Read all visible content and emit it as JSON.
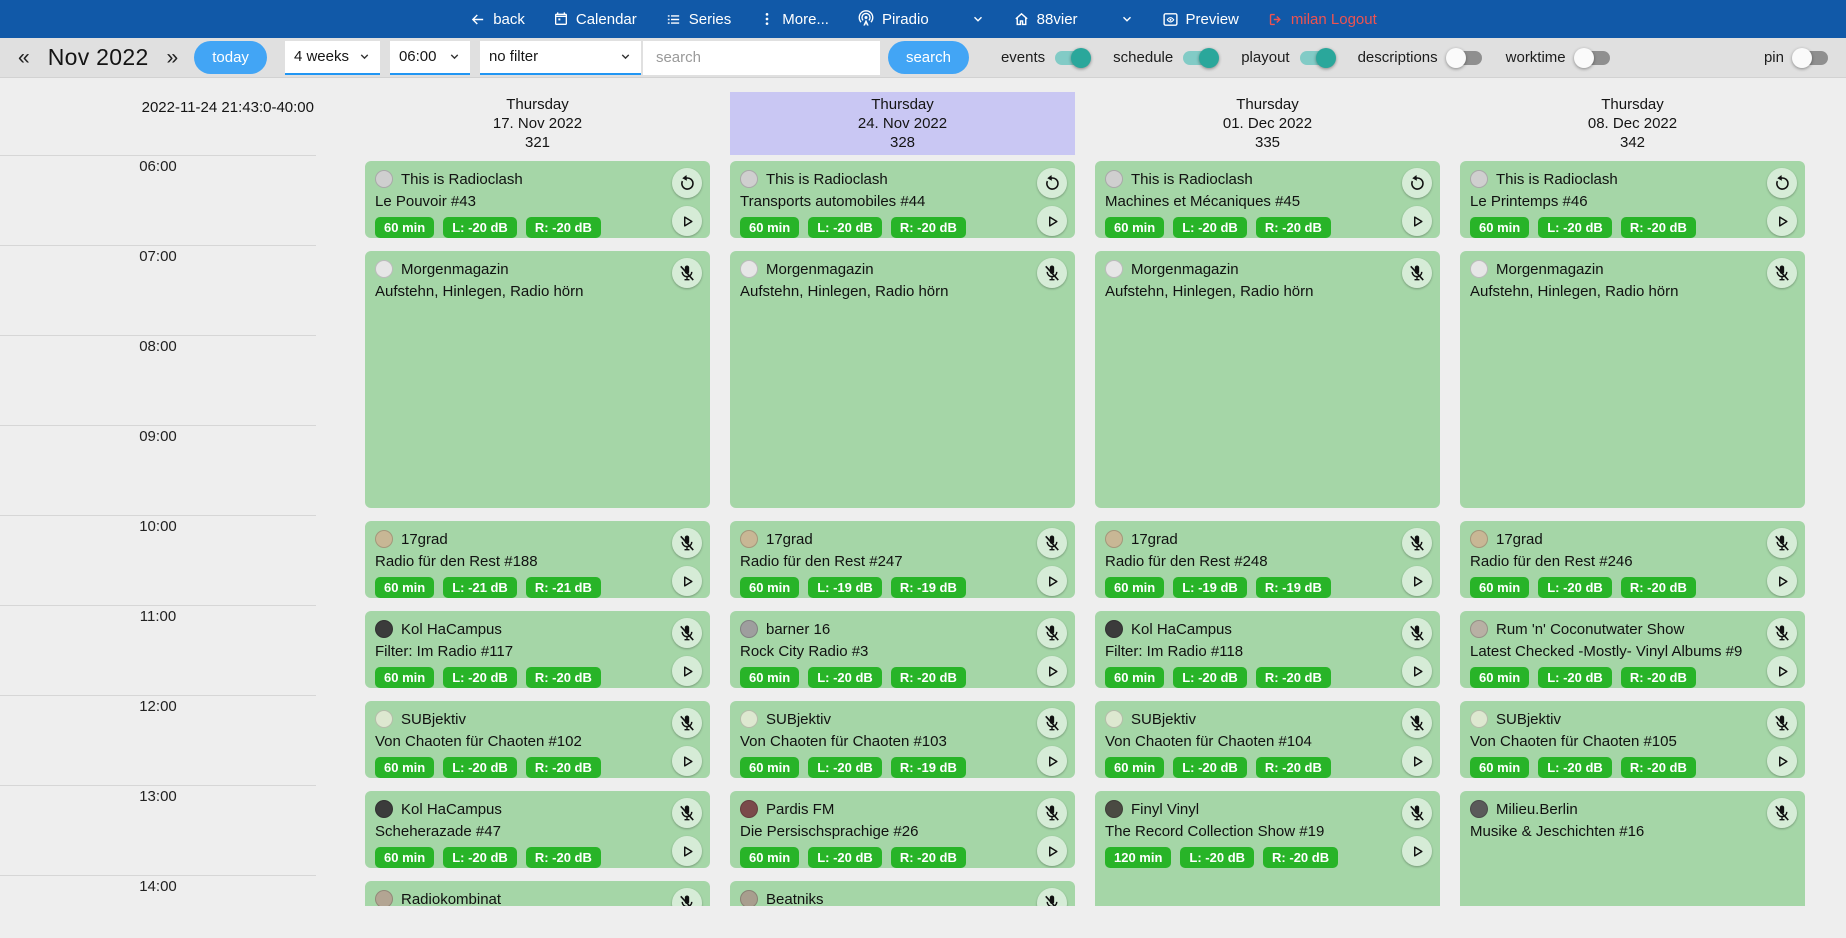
{
  "colors": {
    "navbar_bg": "#1159a8",
    "logout_red": "#ef5350",
    "accent_blue": "#42a5f5",
    "select_underline": "#2196f3",
    "toggle_on": "#2aa79b",
    "event_green": "#a5d6a7",
    "badge_green": "#28b428",
    "selected_day_purple": "#c9c7f3"
  },
  "navbar": {
    "items": [
      {
        "label": "back"
      },
      {
        "label": "Calendar"
      },
      {
        "label": "Series"
      },
      {
        "label": "More..."
      },
      {
        "label": "Piradio"
      },
      {
        "label": "88vier"
      },
      {
        "label": "Preview"
      },
      {
        "label": "milan Logout"
      }
    ]
  },
  "toolbar": {
    "prev": "«",
    "next": "»",
    "month": "Nov 2022",
    "today": "today",
    "selects": [
      {
        "value": "4 weeks"
      },
      {
        "value": "06:00"
      },
      {
        "value": "no filter"
      }
    ],
    "search_placeholder": "search",
    "search_button": "search",
    "toggles": [
      {
        "label": "events",
        "on": true
      },
      {
        "label": "schedule",
        "on": true
      },
      {
        "label": "playout",
        "on": true
      },
      {
        "label": "descriptions",
        "on": false
      },
      {
        "label": "worktime",
        "on": false
      },
      {
        "label": "pin",
        "on": false,
        "right": true
      }
    ]
  },
  "timeline": {
    "stamp": "2022-11-24 21:43:0-40:00",
    "hours": [
      "06:00",
      "07:00",
      "08:00",
      "09:00",
      "10:00",
      "11:00",
      "12:00",
      "13:00",
      "14:00"
    ]
  },
  "columns": [
    {
      "weekday": "Thursday",
      "date": "17. Nov 2022",
      "day_number": "321",
      "selected": false,
      "events": [
        {
          "show": "This is Radioclash",
          "title": "Le Pouvoir #43",
          "slots": 1,
          "badges": [
            "60 min",
            "L: -20 dB",
            "R: -20 dB"
          ],
          "buttons": [
            "reload",
            "play"
          ],
          "avatar": "#cfcfcf"
        },
        {
          "show": "Morgenmagazin",
          "title": "Aufstehn, Hinlegen, Radio hörn",
          "slots": 3,
          "badges": [],
          "buttons": [
            "mic-off"
          ],
          "avatar": "#e6e6e6"
        },
        {
          "show": "17grad",
          "title": "Radio für den Rest #188",
          "slots": 1,
          "badges": [
            "60 min",
            "L: -21 dB",
            "R: -21 dB"
          ],
          "buttons": [
            "mic-off",
            "play"
          ],
          "avatar": "#c8b795"
        },
        {
          "show": "Kol HaCampus",
          "title": "Filter: Im Radio #117",
          "slots": 1,
          "badges": [
            "60 min",
            "L: -20 dB",
            "R: -20 dB"
          ],
          "buttons": [
            "mic-off",
            "play"
          ],
          "avatar": "#3b3b3b"
        },
        {
          "show": "SUBjektiv",
          "title": "Von Chaoten für Chaoten #102",
          "slots": 1,
          "badges": [
            "60 min",
            "L: -20 dB",
            "R: -20 dB"
          ],
          "buttons": [
            "mic-off",
            "play"
          ],
          "avatar": "#dde8d0"
        },
        {
          "show": "Kol HaCampus",
          "title": "Scheherazade #47",
          "slots": 1,
          "badges": [
            "60 min",
            "L: -20 dB",
            "R: -20 dB"
          ],
          "buttons": [
            "mic-off",
            "play"
          ],
          "avatar": "#3b3b3b"
        },
        {
          "show": "Radiokombinat",
          "title": "",
          "slots": 1,
          "badges": [],
          "buttons": [
            "mic-off"
          ],
          "avatar": "#b3a593"
        }
      ]
    },
    {
      "weekday": "Thursday",
      "date": "24. Nov 2022",
      "day_number": "328",
      "selected": true,
      "events": [
        {
          "show": "This is Radioclash",
          "title": "Transports automobiles #44",
          "slots": 1,
          "badges": [
            "60 min",
            "L: -20 dB",
            "R: -20 dB"
          ],
          "buttons": [
            "reload",
            "play"
          ],
          "avatar": "#cfcfcf"
        },
        {
          "show": "Morgenmagazin",
          "title": "Aufstehn, Hinlegen, Radio hörn",
          "slots": 3,
          "badges": [],
          "buttons": [
            "mic-off"
          ],
          "avatar": "#e6e6e6"
        },
        {
          "show": "17grad",
          "title": "Radio für den Rest #247",
          "slots": 1,
          "badges": [
            "60 min",
            "L: -19 dB",
            "R: -19 dB"
          ],
          "buttons": [
            "mic-off",
            "play"
          ],
          "avatar": "#c8b795"
        },
        {
          "show": "barner 16",
          "title": "Rock City Radio #3",
          "slots": 1,
          "badges": [
            "60 min",
            "L: -20 dB",
            "R: -20 dB"
          ],
          "buttons": [
            "mic-off",
            "play"
          ],
          "avatar": "#9e9e9e"
        },
        {
          "show": "SUBjektiv",
          "title": "Von Chaoten für Chaoten #103",
          "slots": 1,
          "badges": [
            "60 min",
            "L: -20 dB",
            "R: -19 dB"
          ],
          "buttons": [
            "mic-off",
            "play"
          ],
          "avatar": "#dde8d0"
        },
        {
          "show": "Pardis FM",
          "title": "Die Persischsprachige #26",
          "slots": 1,
          "badges": [
            "60 min",
            "L: -20 dB",
            "R: -20 dB"
          ],
          "buttons": [
            "mic-off",
            "play"
          ],
          "avatar": "#7a4a4a"
        },
        {
          "show": "Beatniks",
          "title": "",
          "slots": 1,
          "badges": [],
          "buttons": [
            "mic-off"
          ],
          "avatar": "#a89e8e"
        }
      ]
    },
    {
      "weekday": "Thursday",
      "date": "01. Dec 2022",
      "day_number": "335",
      "selected": false,
      "events": [
        {
          "show": "This is Radioclash",
          "title": "Machines et Mécaniques #45",
          "slots": 1,
          "badges": [
            "60 min",
            "L: -20 dB",
            "R: -20 dB"
          ],
          "buttons": [
            "reload",
            "play"
          ],
          "avatar": "#cfcfcf"
        },
        {
          "show": "Morgenmagazin",
          "title": "Aufstehn, Hinlegen, Radio hörn",
          "slots": 3,
          "badges": [],
          "buttons": [
            "mic-off"
          ],
          "avatar": "#e6e6e6"
        },
        {
          "show": "17grad",
          "title": "Radio für den Rest #248",
          "slots": 1,
          "badges": [
            "60 min",
            "L: -19 dB",
            "R: -19 dB"
          ],
          "buttons": [
            "mic-off",
            "play"
          ],
          "avatar": "#c8b795"
        },
        {
          "show": "Kol HaCampus",
          "title": "Filter: Im Radio #118",
          "slots": 1,
          "badges": [
            "60 min",
            "L: -20 dB",
            "R: -20 dB"
          ],
          "buttons": [
            "mic-off",
            "play"
          ],
          "avatar": "#3b3b3b"
        },
        {
          "show": "SUBjektiv",
          "title": "Von Chaoten für Chaoten #104",
          "slots": 1,
          "badges": [
            "60 min",
            "L: -20 dB",
            "R: -20 dB"
          ],
          "buttons": [
            "mic-off",
            "play"
          ],
          "avatar": "#dde8d0"
        },
        {
          "show": "Finyl Vinyl",
          "title": "The Record Collection Show #19",
          "slots": 2,
          "badges": [
            "120 min",
            "L: -20 dB",
            "R: -20 dB"
          ],
          "buttons": [
            "mic-off",
            "play"
          ],
          "avatar": "#4a4a42"
        }
      ]
    },
    {
      "weekday": "Thursday",
      "date": "08. Dec 2022",
      "day_number": "342",
      "selected": false,
      "events": [
        {
          "show": "This is Radioclash",
          "title": "Le Printemps #46",
          "slots": 1,
          "badges": [
            "60 min",
            "L: -20 dB",
            "R: -20 dB"
          ],
          "buttons": [
            "reload",
            "play"
          ],
          "avatar": "#cfcfcf"
        },
        {
          "show": "Morgenmagazin",
          "title": "Aufstehn, Hinlegen, Radio hörn",
          "slots": 3,
          "badges": [],
          "buttons": [
            "mic-off"
          ],
          "avatar": "#e6e6e6"
        },
        {
          "show": "17grad",
          "title": "Radio für den Rest #246",
          "slots": 1,
          "badges": [
            "60 min",
            "L: -20 dB",
            "R: -20 dB"
          ],
          "buttons": [
            "mic-off",
            "play"
          ],
          "avatar": "#c8b795"
        },
        {
          "show": "Rum 'n' Coconutwater Show",
          "title": "Latest Checked -Mostly- Vinyl Albums #9",
          "slots": 1,
          "badges": [
            "60 min",
            "L: -20 dB",
            "R: -20 dB"
          ],
          "buttons": [
            "mic-off",
            "play"
          ],
          "avatar": "#b8b0a4"
        },
        {
          "show": "SUBjektiv",
          "title": "Von Chaoten für Chaoten #105",
          "slots": 1,
          "badges": [
            "60 min",
            "L: -20 dB",
            "R: -20 dB"
          ],
          "buttons": [
            "mic-off",
            "play"
          ],
          "avatar": "#dde8d0"
        },
        {
          "show": "Milieu.Berlin",
          "title": "Musike & Jeschichten #16",
          "slots": 2,
          "badges": [],
          "buttons": [
            "mic-off"
          ],
          "avatar": "#5a5a5a"
        }
      ]
    }
  ]
}
